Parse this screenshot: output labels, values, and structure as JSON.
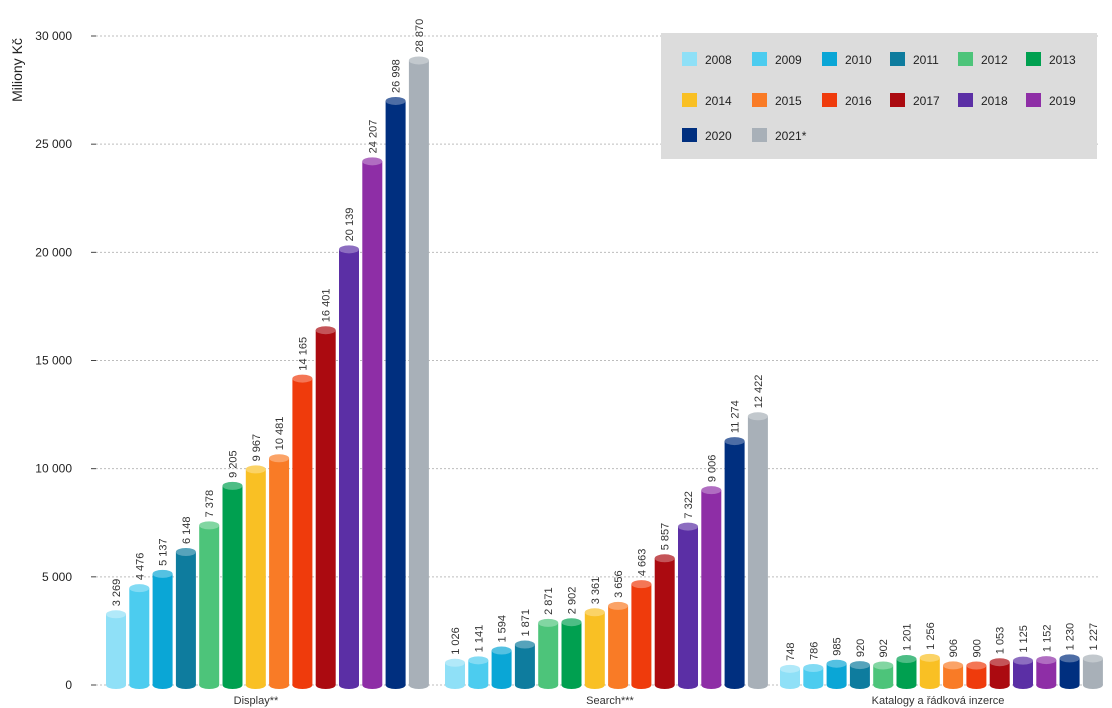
{
  "chart_data": {
    "type": "bar",
    "ylabel": "Miliony Kč",
    "ylim": [
      0,
      30000
    ],
    "yticks": [
      0,
      5000,
      10000,
      15000,
      20000,
      25000,
      30000
    ],
    "ytick_labels": [
      "0",
      "5 000",
      "10 000",
      "15 000",
      "20 000",
      "25 000",
      "30 000"
    ],
    "grid": true,
    "legend_position": "top-right",
    "categories": [
      "Display**",
      "Search***",
      "Katalogy a řádková inzerce"
    ],
    "series": [
      {
        "name": "2008",
        "color": "#8fe0f7",
        "values": [
          3269,
          1026,
          748
        ],
        "labels": [
          "3 269",
          "1 026",
          "748"
        ]
      },
      {
        "name": "2009",
        "color": "#4cccef",
        "values": [
          4476,
          1141,
          786
        ],
        "labels": [
          "4 476",
          "1 141",
          "786"
        ]
      },
      {
        "name": "2010",
        "color": "#0aa6d6",
        "values": [
          5137,
          1594,
          985
        ],
        "labels": [
          "5 137",
          "1 594",
          "985"
        ]
      },
      {
        "name": "2011",
        "color": "#0e7c9e",
        "values": [
          6148,
          1871,
          920
        ],
        "labels": [
          "6 148",
          "1 871",
          "920"
        ]
      },
      {
        "name": "2012",
        "color": "#4dc47a",
        "values": [
          7378,
          2871,
          902
        ],
        "labels": [
          "7 378",
          "2 871",
          "902"
        ]
      },
      {
        "name": "2013",
        "color": "#00a050",
        "values": [
          9205,
          2902,
          1201
        ],
        "labels": [
          "9 205",
          "2 902",
          "1 201"
        ]
      },
      {
        "name": "2014",
        "color": "#f9c024",
        "values": [
          9967,
          3361,
          1256
        ],
        "labels": [
          "9 967",
          "3 361",
          "1 256"
        ]
      },
      {
        "name": "2015",
        "color": "#f97b26",
        "values": [
          10481,
          3656,
          906
        ],
        "labels": [
          "10 481",
          "3 656",
          "906"
        ]
      },
      {
        "name": "2016",
        "color": "#ef3b0c",
        "values": [
          14165,
          4663,
          900
        ],
        "labels": [
          "14 165",
          "4 663",
          "900"
        ]
      },
      {
        "name": "2017",
        "color": "#ab0a10",
        "values": [
          16401,
          5857,
          1053
        ],
        "labels": [
          "16 401",
          "5 857",
          "1 053"
        ]
      },
      {
        "name": "2018",
        "color": "#5b2fa5",
        "values": [
          20139,
          7322,
          1125
        ],
        "labels": [
          "20 139",
          "7 322",
          "1 125"
        ]
      },
      {
        "name": "2019",
        "color": "#8e2ea6",
        "values": [
          24207,
          9006,
          1152
        ],
        "labels": [
          "24 207",
          "9 006",
          "1 152"
        ]
      },
      {
        "name": "2020",
        "color": "#002f7f",
        "values": [
          26998,
          11274,
          1230
        ],
        "labels": [
          "26 998",
          "11 274",
          "1 230"
        ]
      },
      {
        "name": "2021*",
        "color": "#a8b0b8",
        "values": [
          28870,
          12422,
          1227
        ],
        "labels": [
          "28 870",
          "12 422",
          "1 227"
        ]
      }
    ]
  }
}
